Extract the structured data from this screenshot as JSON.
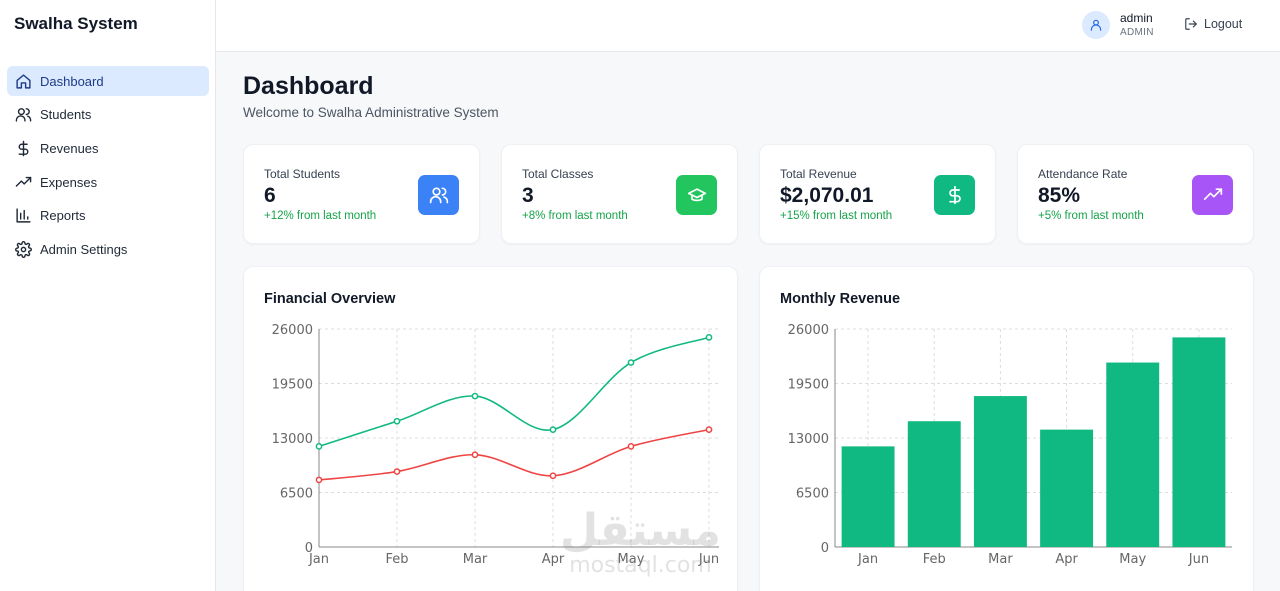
{
  "app": {
    "brand": "Swalha System"
  },
  "sidebar": {
    "items": [
      {
        "label": "Dashboard",
        "icon": "home-icon",
        "active": true
      },
      {
        "label": "Students",
        "icon": "users-icon"
      },
      {
        "label": "Revenues",
        "icon": "dollar-icon"
      },
      {
        "label": "Expenses",
        "icon": "trending-icon"
      },
      {
        "label": "Reports",
        "icon": "bar-chart-icon"
      },
      {
        "label": "Admin Settings",
        "icon": "gear-icon"
      }
    ]
  },
  "topbar": {
    "user_name": "admin",
    "user_role": "ADMIN",
    "logout_label": "Logout"
  },
  "page": {
    "title": "Dashboard",
    "subtitle": "Welcome to Swalha Administrative System"
  },
  "stats": [
    {
      "label": "Total Students",
      "value": "6",
      "change": "+12% from last month",
      "icon": "users-icon",
      "color": "#3b82f6"
    },
    {
      "label": "Total Classes",
      "value": "3",
      "change": "+8% from last month",
      "icon": "graduation-cap-icon",
      "color": "#22c55e"
    },
    {
      "label": "Total Revenue",
      "value": "$2,070.01",
      "change": "+15% from last month",
      "icon": "dollar-icon",
      "color": "#10b981"
    },
    {
      "label": "Attendance Rate",
      "value": "85%",
      "change": "+5% from last month",
      "icon": "trending-up-icon",
      "color": "#a855f7"
    }
  ],
  "charts": {
    "financial_title": "Financial Overview",
    "revenue_title": "Monthly Revenue"
  },
  "chart_data": [
    {
      "type": "line",
      "title": "Financial Overview",
      "categories": [
        "Jan",
        "Feb",
        "Mar",
        "Apr",
        "May",
        "Jun"
      ],
      "series": [
        {
          "values": [
            12000,
            15000,
            18000,
            14000,
            22000,
            25000
          ],
          "color": "#10b981"
        },
        {
          "values": [
            8000,
            9000,
            11000,
            8500,
            12000,
            14000
          ],
          "color": "#ef4444"
        }
      ],
      "ylim": [
        0,
        26000
      ],
      "yticks": [
        "0",
        "6500",
        "13000",
        "19500",
        "26000"
      ],
      "grid": true
    },
    {
      "type": "bar",
      "title": "Monthly Revenue",
      "categories": [
        "Jan",
        "Feb",
        "Mar",
        "Apr",
        "May",
        "Jun"
      ],
      "values": [
        12000,
        15000,
        18000,
        14000,
        22000,
        25000
      ],
      "color": "#10b981",
      "ylim": [
        0,
        26000
      ],
      "yticks": [
        "0",
        "6500",
        "13000",
        "19500",
        "26000"
      ],
      "grid": true
    }
  ],
  "watermark": {
    "arabic": "مستقل",
    "latin": "mostaql.com"
  }
}
